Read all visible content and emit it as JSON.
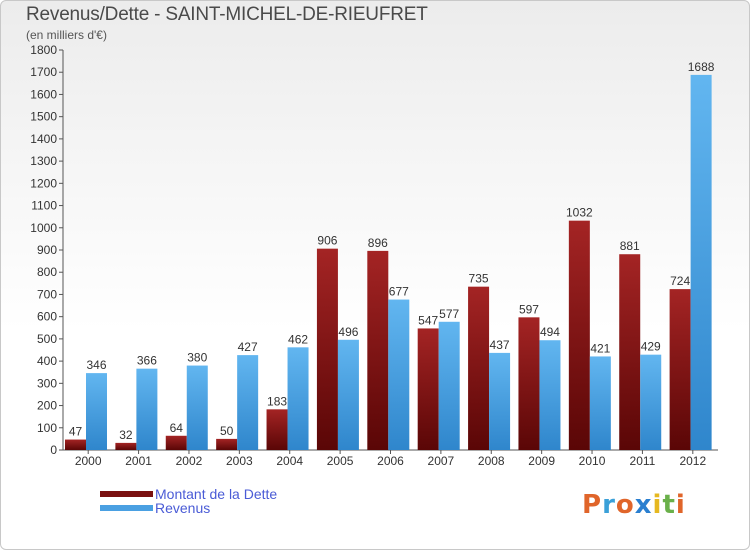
{
  "chart_data": {
    "type": "bar",
    "title": "Revenus/Dette - SAINT-MICHEL-DE-RIEUFRET",
    "subtitle": "(en milliers d'€)",
    "categories": [
      "2000",
      "2001",
      "2002",
      "2003",
      "2004",
      "2005",
      "2006",
      "2007",
      "2008",
      "2009",
      "2010",
      "2011",
      "2012"
    ],
    "series": [
      {
        "name": "Montant de la Dette",
        "color": "#7a1010",
        "values": [
          47,
          32,
          64,
          50,
          183,
          906,
          896,
          547,
          735,
          597,
          1032,
          881,
          724
        ]
      },
      {
        "name": "Revenus",
        "color": "#4aa0e2",
        "values": [
          346,
          366,
          380,
          427,
          462,
          496,
          677,
          577,
          437,
          494,
          421,
          429,
          1688
        ]
      }
    ],
    "ylim": [
      0,
      1800
    ],
    "yticks": [
      0,
      100,
      200,
      300,
      400,
      500,
      600,
      700,
      800,
      900,
      1000,
      1100,
      1200,
      1300,
      1400,
      1500,
      1600,
      1700,
      1800
    ],
    "grid": false,
    "data_labels": true,
    "legend_position": "bottom-left"
  },
  "logo": {
    "text": "Proxiti",
    "colors": [
      "#e0652a",
      "#3aa0d8",
      "#e0652a",
      "#2a7fd0",
      "#e6b820",
      "#6ab04a",
      "#e0652a"
    ]
  }
}
